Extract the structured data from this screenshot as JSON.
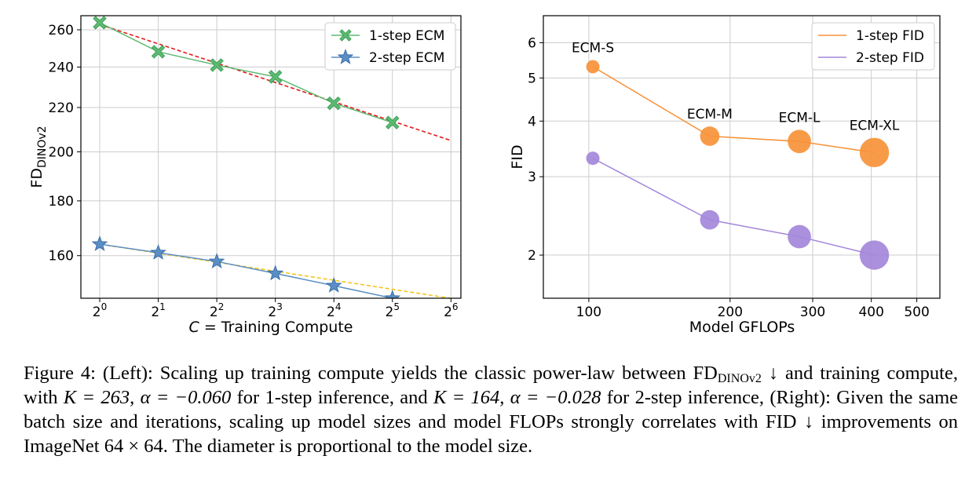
{
  "colors": {
    "one_step_ecm": "#5dbb72",
    "one_step_ecm_dark": "#3e9e57",
    "two_step_ecm": "#5b8ec4",
    "two_step_ecm_dark": "#3c6fa8",
    "fit_one_step": "#e31a1c",
    "fit_two_step": "#f5c518",
    "one_step_fid": "#f7923a",
    "two_step_fid": "#a487da",
    "grid": "#cccccc"
  },
  "chart_data": [
    {
      "type": "line",
      "xscale": "log2",
      "yscale": "log",
      "x": [
        1,
        2,
        4,
        8,
        16,
        32
      ],
      "xlim": [
        0.8,
        72
      ],
      "ylim": [
        146,
        268
      ],
      "xticks": [
        1,
        2,
        4,
        8,
        16,
        32,
        64
      ],
      "xtick_labels": [
        {
          "base": "2",
          "exp": "0"
        },
        {
          "base": "2",
          "exp": "1"
        },
        {
          "base": "2",
          "exp": "2"
        },
        {
          "base": "2",
          "exp": "3"
        },
        {
          "base": "2",
          "exp": "4"
        },
        {
          "base": "2",
          "exp": "5"
        },
        {
          "base": "2",
          "exp": "6"
        }
      ],
      "yticks": [
        160,
        180,
        200,
        220,
        240,
        260
      ],
      "ytick_labels": [
        "160",
        "180",
        "200",
        "220",
        "240",
        "260"
      ],
      "xlabel": {
        "italic": "C",
        "rest": " = Training Compute"
      },
      "ylabel": {
        "main": "FD",
        "sub": "DINOv2"
      },
      "legend_position": "upper-right",
      "series": [
        {
          "name": "1-step ECM",
          "marker": "x",
          "values": [
            264,
            248,
            241,
            235,
            222,
            213
          ]
        },
        {
          "name": "2-step ECM",
          "marker": "star",
          "values": [
            164,
            161,
            158,
            154,
            150,
            146
          ]
        }
      ],
      "fits": [
        {
          "for": "1-step ECM",
          "K": 263,
          "alpha": -0.06,
          "x_range": [
            1,
            64
          ],
          "style": "dashed"
        },
        {
          "for": "2-step ECM",
          "K": 164,
          "alpha": -0.028,
          "x_range": [
            1,
            64
          ],
          "style": "dashed"
        }
      ]
    },
    {
      "type": "line",
      "xscale": "log",
      "yscale": "log",
      "xlim": [
        80,
        560
      ],
      "ylim": [
        1.6,
        6.9
      ],
      "xticks": [
        100,
        200,
        300,
        400,
        500
      ],
      "xtick_labels": [
        "100",
        "200",
        "300",
        "400",
        "500"
      ],
      "yticks": [
        2,
        3,
        4,
        5,
        6
      ],
      "ytick_labels": [
        "2",
        "3",
        "4",
        "5",
        "6"
      ],
      "xlabel": "Model GFLOPs",
      "ylabel": "FID",
      "legend_position": "upper-right",
      "models": [
        "ECM-S",
        "ECM-M",
        "ECM-L",
        "ECM-XL"
      ],
      "x": [
        102,
        181,
        281,
        406
      ],
      "relative_model_size": [
        1,
        1.45,
        1.75,
        2.2
      ],
      "series": [
        {
          "name": "1-step FID",
          "values": [
            5.3,
            3.7,
            3.6,
            3.4
          ]
        },
        {
          "name": "2-step FID",
          "values": [
            3.3,
            2.4,
            2.2,
            2.0
          ]
        }
      ]
    }
  ],
  "caption": {
    "prefix": "Figure 4: (Left): Scaling up training compute yields the classic power-law between FD",
    "fd_sub": "DINOv2",
    "part2": " ↓ and training compute, with ",
    "k1": "K = 263",
    "sep1": ", ",
    "a1": "α = −0.060",
    "part3": " for 1-step inference, and ",
    "k2": "K = 164",
    "sep2": ", ",
    "a2": "α = −0.028",
    "part4": " for 2-step inference, (Right): Given the same batch size and iterations, scaling up model sizes and model FLOPs strongly correlates with FID ↓ improvements on ImageNet ",
    "res": "64 × 64",
    "part5": ". The diameter is proportional to the model size."
  }
}
